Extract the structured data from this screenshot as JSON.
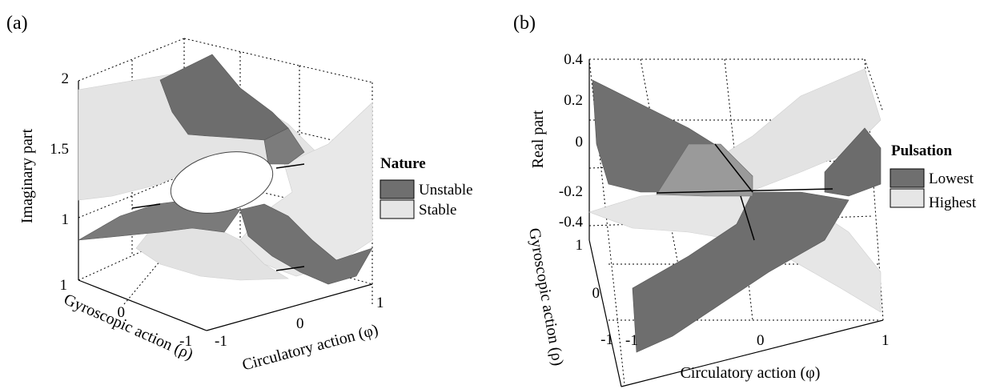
{
  "figure": {
    "panel_a_label": "(a)",
    "panel_b_label": "(b)"
  },
  "chart_data": [
    {
      "type": "surface3d",
      "panel": "(a)",
      "xlabel": "Circulatory action (φ)",
      "ylabel": "Gyroscopic action (ρ)",
      "zlabel": "Imaginary part",
      "x_ticks": [
        "-1",
        "0",
        "1"
      ],
      "y_ticks": [
        "-1",
        "0",
        "1"
      ],
      "z_ticks": [
        "1",
        "1.5",
        "2"
      ],
      "xlim": [
        -1,
        1
      ],
      "ylim": [
        -1,
        1
      ],
      "zlim": [
        0.75,
        2
      ],
      "grid": true,
      "legend_title": "Nature",
      "legend": [
        {
          "label": "Unstable",
          "color": "#6f6f6f"
        },
        {
          "label": "Stable",
          "color": "#e6e6e6"
        }
      ]
    },
    {
      "type": "surface3d",
      "panel": "(b)",
      "xlabel": "Circulatory action (φ)",
      "ylabel": "Gyroscopic action (ρ)",
      "zlabel": "Real part",
      "x_ticks": [
        "-1",
        "0",
        "1"
      ],
      "y_ticks": [
        "-1",
        "0",
        "1"
      ],
      "z_ticks": [
        "0.4",
        "0.2",
        "0",
        "-0.2",
        "-0.4"
      ],
      "xlim": [
        -1,
        1
      ],
      "ylim": [
        -1,
        1
      ],
      "zlim": [
        -0.45,
        0.4
      ],
      "grid": true,
      "legend_title": "Pulsation",
      "legend": [
        {
          "label": "Lowest",
          "color": "#6f6f6f"
        },
        {
          "label": "Highest",
          "color": "#e6e6e6"
        }
      ]
    }
  ]
}
